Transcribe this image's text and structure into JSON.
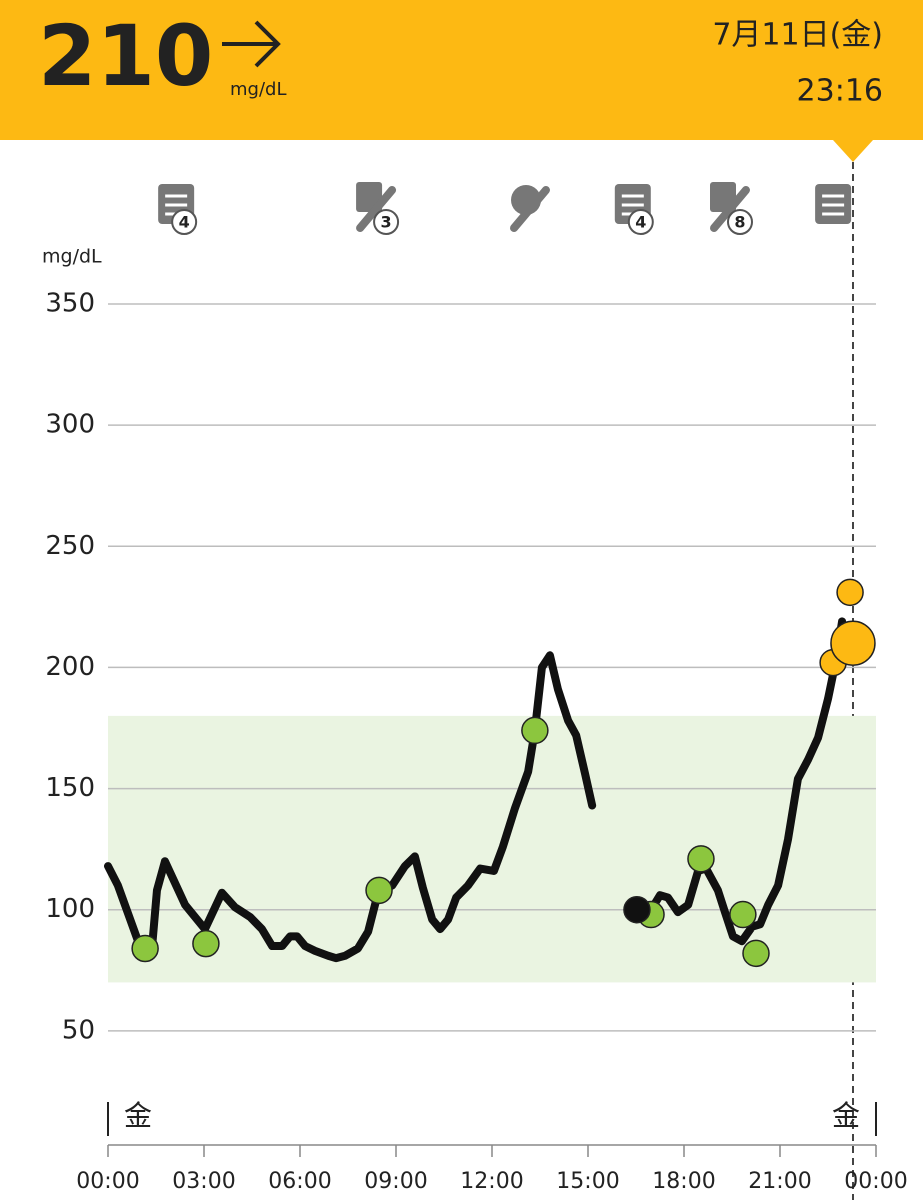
{
  "header": {
    "reading": "210",
    "unit": "mg/dL",
    "date": "7月11日(金)",
    "time": "23:16"
  },
  "chart_data": {
    "type": "line",
    "y_label": "mg/dL",
    "xlim": [
      0,
      24
    ],
    "xticks": [
      {
        "value": 0,
        "label": "00:00"
      },
      {
        "value": 3,
        "label": "03:00"
      },
      {
        "value": 6,
        "label": "06:00"
      },
      {
        "value": 9,
        "label": "09:00"
      },
      {
        "value": 12,
        "label": "12:00"
      },
      {
        "value": 15,
        "label": "15:00"
      },
      {
        "value": 18,
        "label": "18:00"
      },
      {
        "value": 21,
        "label": "21:00"
      },
      {
        "value": 24,
        "label": "00:00"
      }
    ],
    "ylim": [
      0,
      350
    ],
    "yticks": [
      50,
      100,
      150,
      200,
      250,
      300,
      350
    ],
    "grid": true,
    "target_range": [
      70,
      180
    ],
    "target_color": "#eaf4e1",
    "day_labels": [
      {
        "x": 0,
        "label": "金"
      },
      {
        "x": 24,
        "label": "金"
      }
    ],
    "events": [
      {
        "kind": "note",
        "x": 2.13,
        "label": "4"
      },
      {
        "kind": "insulin",
        "x": 8.44,
        "label": "3"
      },
      {
        "kind": "food-insulin",
        "x": 13.25
      },
      {
        "kind": "note",
        "x": 16.4,
        "label": "4"
      },
      {
        "kind": "insulin",
        "x": 19.5,
        "label": "8"
      },
      {
        "kind": "note",
        "x": 22.66
      }
    ],
    "series": [
      {
        "style": "line",
        "color": "#111111",
        "x": [
          0,
          0.31,
          0.94,
          1.16,
          1.38,
          1.53,
          1.78,
          2.41,
          3.03,
          3.56,
          3.97,
          4.44,
          4.81,
          5.13,
          5.44,
          5.69,
          5.91,
          6.16,
          6.47,
          6.88,
          7.13,
          7.41,
          7.81,
          8.13,
          8.44,
          8.88,
          9.28,
          9.59,
          9.84,
          10.13,
          10.38,
          10.63,
          10.88,
          11.25,
          11.63,
          12.06,
          12.34,
          12.72,
          13.13,
          13.34,
          13.56,
          13.81,
          14.06,
          14.38,
          14.63,
          14.91,
          15.13,
          15.8,
          16.47,
          16.88,
          17.25,
          17.5,
          17.81,
          18.13,
          18.44,
          18.69,
          19.06,
          19.28,
          19.53,
          19.81,
          20.13,
          20.38,
          20.63,
          20.94,
          21.25,
          21.56,
          21.88,
          22.19,
          22.5,
          22.75,
          22.94
        ],
        "values": [
          118,
          110,
          87,
          84,
          85,
          108,
          120,
          102,
          92,
          107,
          101,
          97,
          92,
          85,
          85,
          89,
          89,
          85,
          83,
          81,
          80,
          81,
          84,
          91,
          107,
          110,
          118,
          122,
          109,
          96,
          92,
          96,
          105,
          110,
          117,
          116,
          126,
          142,
          157,
          174,
          200,
          205,
          191,
          178,
          172,
          156,
          143,
          null,
          100,
          98,
          106,
          105,
          99,
          102,
          116,
          117,
          108,
          99,
          89,
          87,
          93,
          94,
          102,
          110,
          129,
          154,
          162,
          171,
          187,
          203,
          219
        ]
      },
      {
        "style": "marker",
        "color": "#8cc63e",
        "x": [
          1.16,
          3.06,
          8.47,
          13.34,
          16.97,
          18.53,
          19.84,
          20.25
        ],
        "values": [
          84,
          86,
          108,
          174,
          98,
          121,
          98,
          82
        ]
      },
      {
        "style": "marker",
        "color": "#111111",
        "x": [
          16.53
        ],
        "values": [
          100
        ]
      },
      {
        "style": "marker",
        "color": "#fdb913",
        "x": [
          22.66,
          23.19
        ],
        "values": [
          202,
          231
        ]
      },
      {
        "style": "current",
        "color": "#fdb913",
        "x": [
          23.28
        ],
        "values": [
          210
        ]
      }
    ]
  }
}
